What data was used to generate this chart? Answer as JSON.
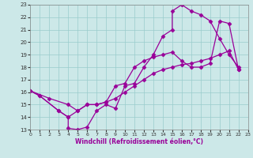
{
  "xlabel": "Windchill (Refroidissement éolien,°C)",
  "xlim": [
    0,
    23
  ],
  "ylim": [
    13,
    23
  ],
  "xticks": [
    0,
    1,
    2,
    3,
    4,
    5,
    6,
    7,
    8,
    9,
    10,
    11,
    12,
    13,
    14,
    15,
    16,
    17,
    18,
    19,
    20,
    21,
    22,
    23
  ],
  "yticks": [
    13,
    14,
    15,
    16,
    17,
    18,
    19,
    20,
    21,
    22,
    23
  ],
  "bg_color": "#cce8e8",
  "line_color": "#990099",
  "line1": [
    [
      0,
      16.1
    ],
    [
      1,
      15.7
    ],
    [
      3,
      14.5
    ],
    [
      4,
      14.0
    ],
    [
      4,
      13.1
    ],
    [
      5,
      13.0
    ],
    [
      6,
      13.2
    ],
    [
      7,
      14.5
    ],
    [
      8,
      15.0
    ],
    [
      9,
      14.7
    ],
    [
      10,
      16.5
    ],
    [
      11,
      16.7
    ],
    [
      12,
      18.0
    ],
    [
      13,
      19.0
    ],
    [
      14,
      20.5
    ],
    [
      15,
      21.0
    ],
    [
      15,
      22.5
    ],
    [
      16,
      23.0
    ],
    [
      17,
      22.5
    ],
    [
      18,
      22.2
    ],
    [
      19,
      21.7
    ],
    [
      20,
      20.3
    ],
    [
      21,
      19.0
    ],
    [
      22,
      18.0
    ]
  ],
  "line2": [
    [
      0,
      16.1
    ],
    [
      2,
      15.5
    ],
    [
      4,
      15.0
    ],
    [
      5,
      14.5
    ],
    [
      6,
      15.0
    ],
    [
      7,
      15.0
    ],
    [
      8,
      15.2
    ],
    [
      9,
      15.5
    ],
    [
      10,
      16.0
    ],
    [
      11,
      16.5
    ],
    [
      12,
      17.0
    ],
    [
      13,
      17.5
    ],
    [
      14,
      17.8
    ],
    [
      15,
      18.0
    ],
    [
      16,
      18.2
    ],
    [
      17,
      18.3
    ],
    [
      18,
      18.5
    ],
    [
      19,
      18.7
    ],
    [
      20,
      19.0
    ],
    [
      21,
      19.3
    ],
    [
      22,
      17.8
    ]
  ],
  "line3": [
    [
      0,
      16.1
    ],
    [
      1,
      15.7
    ],
    [
      3,
      14.5
    ],
    [
      4,
      14.0
    ],
    [
      5,
      14.5
    ],
    [
      6,
      15.0
    ],
    [
      7,
      15.0
    ],
    [
      8,
      15.2
    ],
    [
      9,
      16.5
    ],
    [
      10,
      16.7
    ],
    [
      11,
      18.0
    ],
    [
      12,
      18.5
    ],
    [
      13,
      18.8
    ],
    [
      14,
      19.0
    ],
    [
      15,
      19.2
    ],
    [
      16,
      18.5
    ],
    [
      17,
      18.0
    ],
    [
      18,
      18.0
    ],
    [
      19,
      18.3
    ],
    [
      20,
      21.7
    ],
    [
      21,
      21.5
    ],
    [
      22,
      17.8
    ]
  ],
  "marker": "D",
  "markersize": 2.5,
  "linewidth": 0.9
}
